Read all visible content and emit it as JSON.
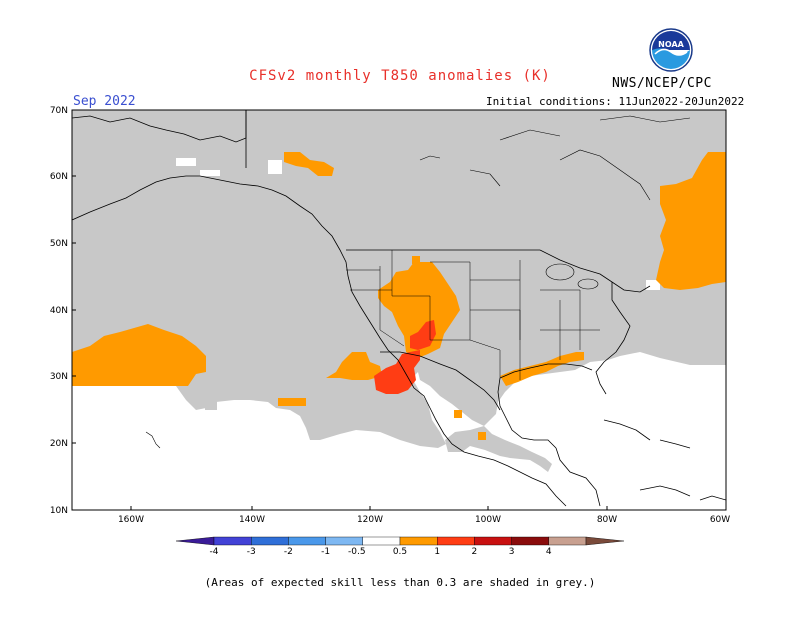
{
  "header": {
    "title": "CFSv2 monthly T850 anomalies (K)",
    "agency": "NWS/NCEP/CPC",
    "valid_month": "Sep 2022",
    "initial_conditions": "Initial conditions: 11Jun2022-20Jun2022",
    "logo_text": "NOAA"
  },
  "map": {
    "lat_labels": [
      "70N",
      "60N",
      "50N",
      "40N",
      "30N",
      "20N",
      "10N"
    ],
    "lon_labels": [
      "160W",
      "140W",
      "120W",
      "100W",
      "80W",
      "60W"
    ],
    "colors": {
      "ocean": "#ffffff",
      "low_skill_grey": "#c8c8c8",
      "coast": "#000000"
    }
  },
  "colorbar": {
    "tick_labels": [
      "-4",
      "-3",
      "-2",
      "-1",
      "-0.5",
      "0.5",
      "1",
      "2",
      "3",
      "4"
    ],
    "bins": [
      {
        "color": "#3a1b98"
      },
      {
        "color": "#4242d6"
      },
      {
        "color": "#2f6fd8"
      },
      {
        "color": "#4a98ea"
      },
      {
        "color": "#7eb8f2"
      },
      {
        "color": "#ffffff"
      },
      {
        "color": "#ff9a00"
      },
      {
        "color": "#ff3d14"
      },
      {
        "color": "#c81010"
      },
      {
        "color": "#8a0c0c"
      },
      {
        "color": "#c8a090"
      },
      {
        "color": "#7a4a3a"
      }
    ]
  },
  "footer": {
    "note": "(Areas of expected skill less than 0.3 are shaded in grey.)"
  }
}
